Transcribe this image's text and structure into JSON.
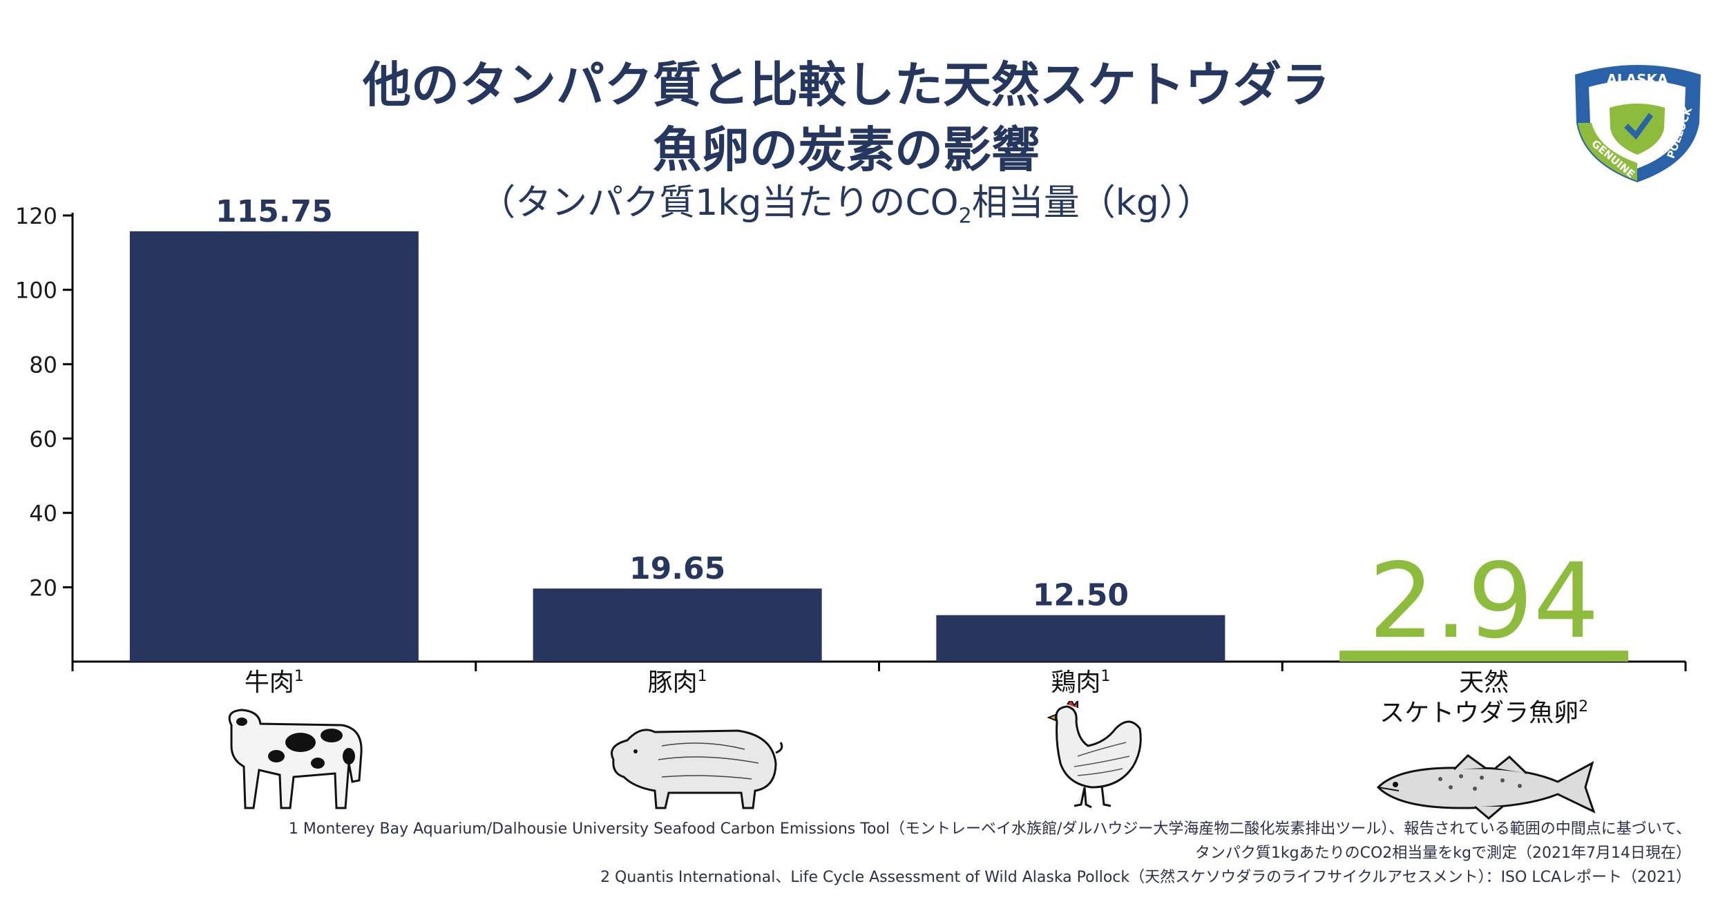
{
  "title": {
    "line1": "他のタンパク質と比較した天然スケトウダラ",
    "line2": "魚卵の炭素の影響",
    "line3_pre": "（タンパク質1kg当たりのCO",
    "line3_sub": "2",
    "line3_post": "相当量（kg））"
  },
  "logo": {
    "top": "ALASKA",
    "side": "POLLOCK",
    "bottom": "GENUINE"
  },
  "chart_data": {
    "type": "bar",
    "categories": [
      "牛肉",
      "豚肉",
      "鶏肉",
      "天然\nスケトウダラ魚卵"
    ],
    "category_superscripts": [
      "1",
      "1",
      "1",
      "2"
    ],
    "values": [
      115.75,
      19.65,
      12.5,
      2.94
    ],
    "value_labels": [
      "115.75",
      "19.65",
      "12.50",
      "2.94"
    ],
    "ylim": [
      0,
      120
    ],
    "yticks": [
      20,
      40,
      60,
      80,
      100,
      120
    ],
    "grid": false,
    "colors": {
      "bar": "#26365f",
      "highlight": "#8dbb3c",
      "axis": "#000000"
    }
  },
  "animals": [
    "cow-icon",
    "pig-icon",
    "chicken-icon",
    "pollock-fish-icon"
  ],
  "footnotes": {
    "line1": "1 Monterey Bay Aquarium/Dalhousie University Seafood Carbon Emissions Tool（モントレーベイ水族館/ダルハウジー大学海産物二酸化炭素排出ツール）、報告されている範囲の中間点に基づいて、",
    "line2": "タンパク質1kgあたりのCO2相当量をkgで測定（2021年7月14日現在）",
    "line3": "2 Quantis International、Life Cycle Assessment of Wild Alaska Pollock（天然スケソウダラのライフサイクルアセスメント）：ISO LCAレポート（2021）"
  }
}
